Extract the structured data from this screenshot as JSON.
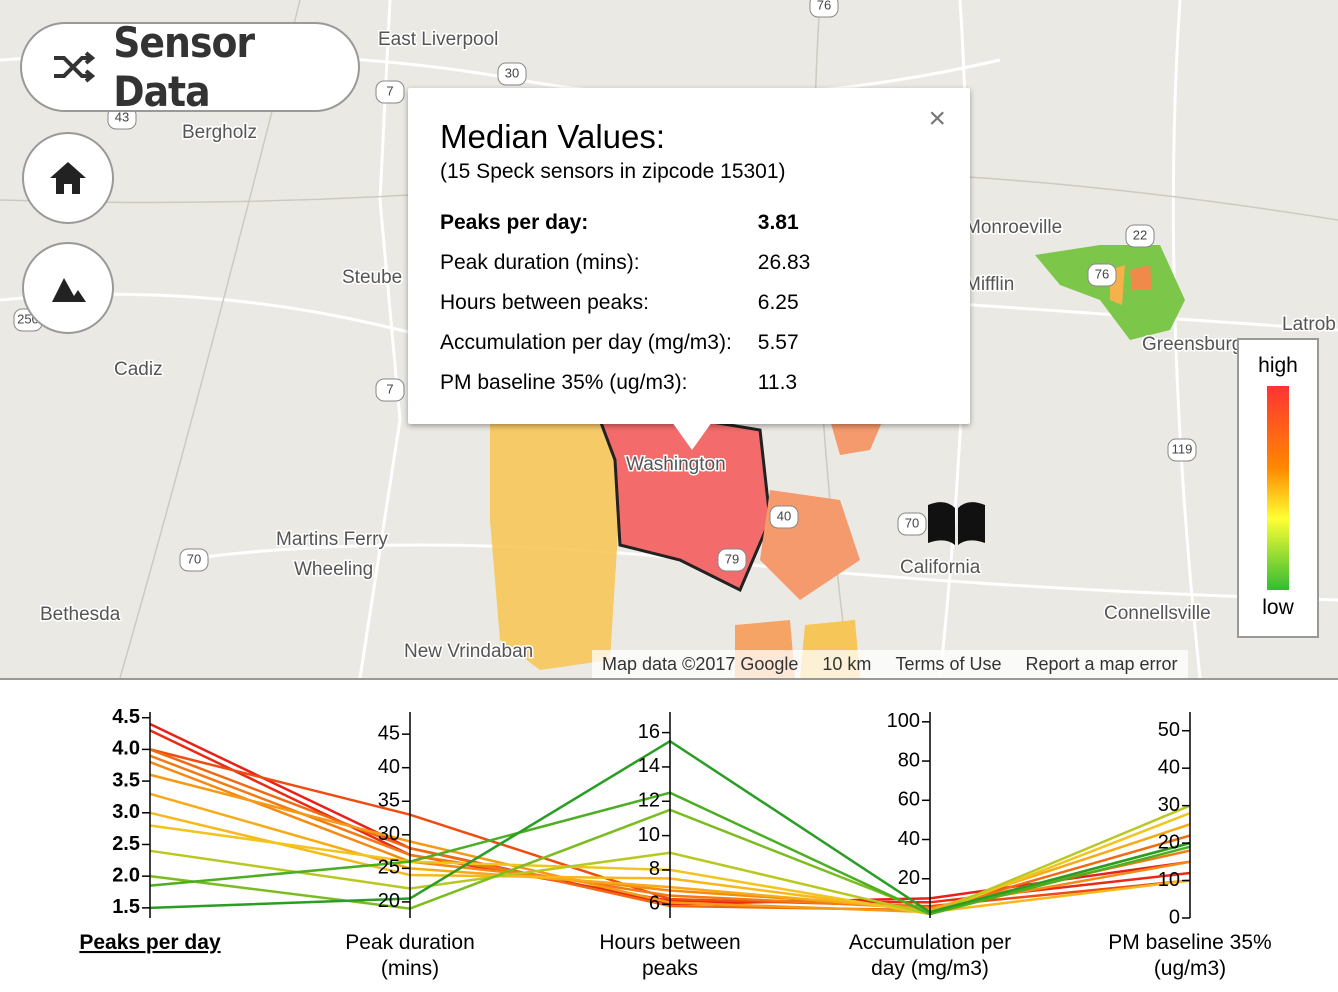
{
  "header": {
    "title": "Sensor Data"
  },
  "map": {
    "places": [
      "East Liverpool",
      "Bergholz",
      "Steube",
      "Cadiz",
      "Martins Ferry",
      "Wheeling",
      "Bethesda",
      "New Vrindaban",
      "Washington",
      "California",
      "Monroeville",
      "Mifflin",
      "Greensburg",
      "Connellsville",
      "Latrob"
    ],
    "shields": [
      "7",
      "30",
      "43",
      "7",
      "70",
      "70",
      "76",
      "76",
      "22",
      "119",
      "40",
      "79",
      "250"
    ],
    "footer": [
      "Map data ©2017 Google",
      "10 km",
      "Terms of Use",
      "Report a map error"
    ]
  },
  "popup": {
    "title": "Median Values:",
    "subtitle": "(15 Speck sensors in zipcode 15301)",
    "close": "×",
    "rows": [
      [
        "Peaks per day:",
        3.81
      ],
      [
        "Peak duration (mins):",
        26.83
      ],
      [
        "Hours between peaks:",
        6.25
      ],
      [
        "Accumulation per day (mg/m3):",
        5.57
      ],
      [
        "PM baseline 35% (ug/m3):",
        11.3
      ]
    ]
  },
  "legend": {
    "high": "high",
    "low": "low"
  },
  "parallel": {
    "axes": [
      {
        "label": [
          "Peaks per day"
        ],
        "range": [
          1.34,
          4.59
        ],
        "ticks": [
          1.5,
          {
            "value": 2,
            "label": "2.0"
          },
          2.5,
          {
            "value": 3,
            "label": "3.0"
          },
          3.5,
          {
            "value": 4,
            "label": "4.0"
          },
          4.5
        ]
      },
      {
        "label": [
          "Peak duration",
          "(mins)"
        ],
        "range": [
          17.6,
          48.3
        ],
        "ticks": [
          20,
          25,
          30,
          35,
          40,
          45
        ]
      },
      {
        "label": [
          "Hours between",
          "peaks"
        ],
        "range": [
          5.2,
          17.2
        ],
        "ticks": [
          6,
          8,
          10,
          12,
          14,
          16
        ]
      },
      {
        "label": [
          "Accumulation per",
          "day (mg/m3)"
        ],
        "range": [
          0,
          105
        ],
        "ticks": [
          20,
          40,
          60,
          80,
          100
        ]
      },
      {
        "label": [
          "PM baseline 35%",
          "(ug/m3)"
        ],
        "range": [
          0,
          55
        ],
        "ticks": [
          0,
          10,
          20,
          30,
          40,
          50
        ]
      }
    ],
    "lines": [
      {
        "color": "#e8201a",
        "values": [
          4.4,
          28,
          6.0,
          10,
          15
        ]
      },
      {
        "color": "#ea2a14",
        "values": [
          4.3,
          27,
          6.2,
          8,
          12
        ]
      },
      {
        "color": "#ee4c10",
        "values": [
          4.0,
          33,
          6.3,
          6,
          10
        ]
      },
      {
        "color": "#f06a10",
        "values": [
          4.0,
          28,
          5.9,
          4,
          22
        ]
      },
      {
        "color": "#f27a12",
        "values": [
          3.9,
          27,
          6.5,
          5,
          18
        ]
      },
      {
        "color": "#f48a14",
        "values": [
          3.8,
          26,
          6.8,
          5,
          15
        ]
      },
      {
        "color": "#f59a16",
        "values": [
          3.6,
          29,
          6.1,
          3,
          20
        ]
      },
      {
        "color": "#f7aa18",
        "values": [
          3.3,
          25,
          7.0,
          4,
          25
        ]
      },
      {
        "color": "#f8b81c",
        "values": [
          3.0,
          24,
          7.5,
          3,
          10
        ]
      },
      {
        "color": "#f2c41e",
        "values": [
          2.8,
          26,
          8.0,
          2,
          28
        ]
      },
      {
        "color": "#b8c820",
        "values": [
          2.4,
          22,
          9,
          2,
          30
        ]
      },
      {
        "color": "#7cbc20",
        "values": [
          2.0,
          19,
          11.5,
          3,
          20
        ]
      },
      {
        "color": "#4cae22",
        "values": [
          1.85,
          26,
          12.5,
          2,
          19
        ]
      },
      {
        "color": "#2a9e24",
        "values": [
          1.5,
          20.5,
          15.5,
          3,
          20
        ]
      }
    ]
  }
}
